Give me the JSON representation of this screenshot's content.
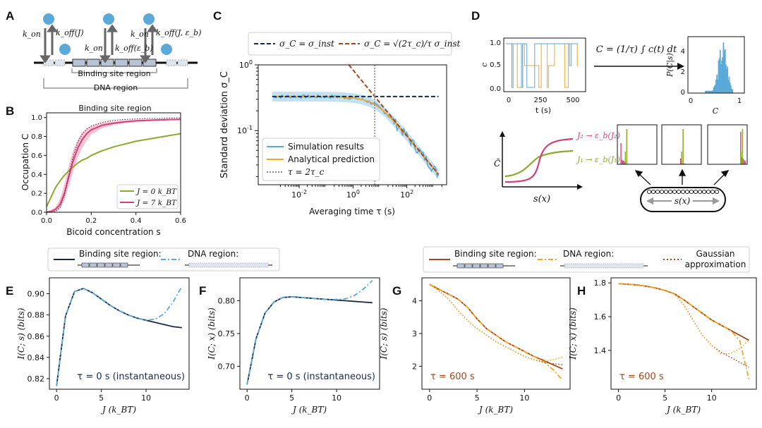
{
  "colors": {
    "navy": "#1a2a4a",
    "sky": "#5aa9d9",
    "rust": "#a5471c",
    "orange": "#f5a623",
    "green": "#8aab2e",
    "pink": "#d6407a",
    "gray": "#888888",
    "lightblue": "#aad4ee"
  },
  "panel_labels": {
    "A": "A",
    "B": "B",
    "C": "C",
    "D": "D",
    "E": "E",
    "F": "F",
    "G": "G",
    "H": "H"
  },
  "panelA": {
    "k_on": "k_on",
    "k_off_J": "k_off(J)",
    "k_off_eb": "k_off(ε_b)",
    "k_off_J_eb": "k_off(J, ε_b)",
    "binding_site_region": "Binding site region",
    "dna_region": "DNA region"
  },
  "panelD": {
    "ts_ylabel": "c",
    "ts_xlabel": "t (s)",
    "ts_xticks": [
      "0",
      "250",
      "500"
    ],
    "ts_yticks": [
      "0.0",
      "0.5",
      "1.0"
    ],
    "formula": "C = (1/τ) ∫ c(t) dt",
    "hist_ylabel": "P(C|s)",
    "hist_xlabel": "C",
    "hist_xticks": [
      "0",
      "1"
    ],
    "hist_yticks": [
      "0",
      "2",
      "4"
    ],
    "curve_ylabel": "C̄",
    "curve_xlabel": "s(x)",
    "J2_label": "J₂ → ε_b(J₂)",
    "J1_label": "J₁ → ε_b(J₁)",
    "embryo_label": "s(x)"
  },
  "legendEF": {
    "bsr": "Binding site region:",
    "dna": "DNA region:"
  },
  "legendGH": {
    "bsr": "Binding site region:",
    "dna": "DNA region:",
    "gauss": "Gaussian approximation",
    "gauss1": "Gaussian",
    "gauss2": "approximation"
  },
  "chart_data": [
    {
      "id": "B",
      "type": "line",
      "title": "Binding site region",
      "xlabel": "Bicoid concentration s",
      "ylabel": "Occupation C",
      "xlim": [
        0,
        0.6
      ],
      "ylim": [
        0,
        1.05
      ],
      "xticks": [
        "0.0",
        "0.2",
        "0.4",
        "0.6"
      ],
      "yticks": [
        "0.0",
        "0.2",
        "0.4",
        "0.6",
        "0.8",
        "1.0"
      ],
      "x": [
        0,
        0.02,
        0.04,
        0.06,
        0.08,
        0.1,
        0.12,
        0.14,
        0.16,
        0.18,
        0.2,
        0.25,
        0.3,
        0.35,
        0.4,
        0.45,
        0.5,
        0.55,
        0.6
      ],
      "series": [
        {
          "name": "J = 0 k_BT",
          "values": [
            0.06,
            0.16,
            0.26,
            0.33,
            0.39,
            0.44,
            0.48,
            0.52,
            0.55,
            0.57,
            0.6,
            0.65,
            0.69,
            0.72,
            0.75,
            0.77,
            0.79,
            0.81,
            0.83
          ]
        },
        {
          "name": "J = 7 k_BT",
          "values": [
            0.0,
            0.01,
            0.03,
            0.08,
            0.2,
            0.38,
            0.55,
            0.68,
            0.77,
            0.83,
            0.87,
            0.92,
            0.94,
            0.955,
            0.965,
            0.97,
            0.975,
            0.978,
            0.98
          ]
        },
        {
          "name": "dotted",
          "values": [
            0.0,
            0.0,
            0.01,
            0.05,
            0.18,
            0.4,
            0.6,
            0.74,
            0.83,
            0.88,
            0.91,
            0.95,
            0.97,
            0.98,
            0.985,
            0.99,
            0.99,
            0.995,
            0.995
          ]
        }
      ],
      "band_lo": [
        0.0,
        0.0,
        0.01,
        0.04,
        0.12,
        0.28,
        0.44,
        0.58,
        0.68,
        0.76,
        0.82,
        0.89,
        0.92,
        0.94,
        0.955,
        0.96,
        0.968,
        0.972,
        0.975
      ],
      "band_hi": [
        0.0,
        0.02,
        0.06,
        0.14,
        0.3,
        0.5,
        0.66,
        0.77,
        0.84,
        0.88,
        0.91,
        0.945,
        0.96,
        0.968,
        0.975,
        0.98,
        0.982,
        0.984,
        0.985
      ],
      "legend": [
        "J = 0 k_BT",
        "J = 7 k_BT"
      ]
    },
    {
      "id": "C",
      "type": "line",
      "xlabel": "Averaging time τ (s)",
      "ylabel": "Standard deviation σ_C",
      "xscale": "log",
      "yscale": "log",
      "xlim": [
        0.0003,
        3000
      ],
      "ylim": [
        0.015,
        1
      ],
      "xticks": [
        "10^-2",
        "10^0",
        "10^2"
      ],
      "yticks": [
        "10^-1",
        "10^0"
      ],
      "tau_c": 3.2,
      "sigma_inst": 0.33,
      "legend_top": [
        "σ_C = σ_inst",
        "σ_C = √(2τ_c)/τ σ_inst"
      ],
      "legend": [
        "Simulation results",
        "Analytical prediction",
        "τ = 2τ_c"
      ]
    },
    {
      "id": "E",
      "type": "line",
      "xlabel": "J (k_BT)",
      "ylabel": "I(C; s) (bits)",
      "xlim": [
        -0.8,
        14.8
      ],
      "ylim": [
        0.81,
        0.915
      ],
      "xticks": [
        "0",
        "5",
        "10"
      ],
      "yticks": [
        "0.82",
        "0.84",
        "0.86",
        "0.88",
        "0.90"
      ],
      "x": [
        0,
        1,
        2,
        3,
        4,
        5,
        6,
        7,
        8,
        9,
        10,
        11,
        12,
        13,
        14
      ],
      "series": [
        {
          "name": "Binding site region",
          "values": [
            0.813,
            0.879,
            0.902,
            0.905,
            0.901,
            0.895,
            0.889,
            0.884,
            0.88,
            0.877,
            0.875,
            0.873,
            0.871,
            0.869,
            0.868
          ]
        },
        {
          "name": "DNA region",
          "values": [
            0.813,
            0.879,
            0.902,
            0.905,
            0.901,
            0.895,
            0.889,
            0.884,
            0.88,
            0.877,
            0.875,
            0.876,
            0.881,
            0.892,
            0.907
          ]
        }
      ],
      "annotation": "τ = 0 s (instantaneous)"
    },
    {
      "id": "F",
      "type": "line",
      "xlabel": "J (k_BT)",
      "ylabel": "I(C; x) (bits)",
      "xlim": [
        -0.8,
        14.8
      ],
      "ylim": [
        0.665,
        0.835
      ],
      "xticks": [
        "0",
        "5",
        "10"
      ],
      "yticks": [
        "0.70",
        "0.75",
        "0.80"
      ],
      "x": [
        0,
        1,
        2,
        3,
        4,
        5,
        6,
        7,
        8,
        9,
        10,
        11,
        12,
        13,
        14
      ],
      "series": [
        {
          "name": "Binding site region",
          "values": [
            0.672,
            0.742,
            0.781,
            0.798,
            0.805,
            0.806,
            0.805,
            0.804,
            0.803,
            0.802,
            0.801,
            0.8,
            0.799,
            0.798,
            0.797
          ]
        },
        {
          "name": "DNA region",
          "values": [
            0.672,
            0.742,
            0.781,
            0.798,
            0.805,
            0.806,
            0.805,
            0.804,
            0.803,
            0.802,
            0.802,
            0.803,
            0.808,
            0.818,
            0.831
          ]
        }
      ],
      "annotation": "τ = 0 s (instantaneous)"
    },
    {
      "id": "G",
      "type": "line",
      "xlabel": "J (k_BT)",
      "ylabel": "I(C; s) (bits)",
      "xlim": [
        -0.8,
        14.8
      ],
      "ylim": [
        1.3,
        4.7
      ],
      "xticks": [
        "0",
        "5",
        "10"
      ],
      "yticks": [
        "2",
        "3",
        "4"
      ],
      "x": [
        0,
        1,
        2,
        3,
        4,
        5,
        6,
        7,
        8,
        9,
        10,
        11,
        12,
        13,
        14
      ],
      "series": [
        {
          "name": "Binding site region",
          "values": [
            4.5,
            4.35,
            4.2,
            4.05,
            3.8,
            3.45,
            3.15,
            2.95,
            2.75,
            2.6,
            2.45,
            2.3,
            2.18,
            2.05,
            1.92
          ]
        },
        {
          "name": "DNA region",
          "values": [
            4.5,
            4.35,
            4.2,
            4.05,
            3.8,
            3.45,
            3.15,
            2.95,
            2.75,
            2.6,
            2.45,
            2.3,
            2.15,
            1.9,
            1.58
          ]
        },
        {
          "name": "Gaussian approximation (binding site)",
          "values": [
            4.5,
            4.3,
            4.05,
            3.7,
            3.4,
            3.15,
            2.95,
            2.75,
            2.6,
            2.45,
            2.3,
            2.2,
            2.12,
            2.08,
            2.05
          ]
        },
        {
          "name": "Gaussian approximation (DNA)",
          "values": [
            4.5,
            4.3,
            4.05,
            3.7,
            3.4,
            3.15,
            2.95,
            2.75,
            2.6,
            2.45,
            2.3,
            2.2,
            2.15,
            2.2,
            2.28
          ]
        }
      ],
      "annotation": "τ = 600 s"
    },
    {
      "id": "H",
      "type": "line",
      "xlabel": "J (k_BT)",
      "ylabel": "I(C; x) (bits)",
      "xlim": [
        -0.8,
        14.8
      ],
      "ylim": [
        1.17,
        1.83
      ],
      "xticks": [
        "0",
        "5",
        "10"
      ],
      "yticks": [
        "1.4",
        "1.6",
        "1.8"
      ],
      "x": [
        0,
        1,
        2,
        3,
        4,
        5,
        6,
        7,
        8,
        9,
        10,
        11,
        12,
        13,
        14
      ],
      "series": [
        {
          "name": "Binding site region",
          "values": [
            1.795,
            1.792,
            1.788,
            1.78,
            1.77,
            1.755,
            1.735,
            1.7,
            1.66,
            1.62,
            1.58,
            1.55,
            1.52,
            1.49,
            1.46
          ]
        },
        {
          "name": "DNA region",
          "values": [
            1.795,
            1.792,
            1.788,
            1.78,
            1.77,
            1.755,
            1.735,
            1.7,
            1.66,
            1.62,
            1.58,
            1.55,
            1.52,
            1.46,
            1.23
          ]
        },
        {
          "name": "Gaussian approximation (binding site)",
          "values": [
            1.795,
            1.792,
            1.788,
            1.78,
            1.77,
            1.755,
            1.735,
            1.67,
            1.58,
            1.49,
            1.43,
            1.39,
            1.36,
            1.33,
            1.3
          ]
        },
        {
          "name": "Gaussian approximation (DNA)",
          "values": [
            1.795,
            1.792,
            1.788,
            1.78,
            1.77,
            1.755,
            1.735,
            1.67,
            1.58,
            1.49,
            1.43,
            1.38,
            1.38,
            1.41,
            1.46
          ]
        }
      ],
      "annotation": "τ = 600 s"
    }
  ]
}
